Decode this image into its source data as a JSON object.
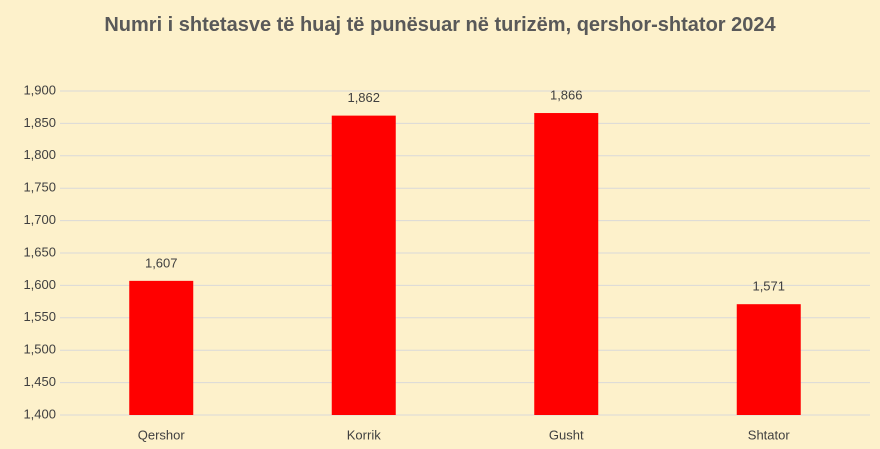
{
  "chart_data": {
    "type": "bar",
    "title": "Numri i shtetasve të huaj të punësuar në turizëm, qershor-shtator 2024",
    "categories": [
      "Qershor",
      "Korrik",
      "Gusht",
      "Shtator"
    ],
    "values": [
      1607,
      1862,
      1866,
      1571
    ],
    "value_labels": [
      "1,607",
      "1,862",
      "1,866",
      "1,571"
    ],
    "color": "#ff0000",
    "ylim": [
      1400,
      1900
    ],
    "yticks": [
      {
        "value": 1400,
        "label": "1,400"
      },
      {
        "value": 1450,
        "label": "1,450"
      },
      {
        "value": 1500,
        "label": "1,500"
      },
      {
        "value": 1550,
        "label": "1,550"
      },
      {
        "value": 1600,
        "label": "1,600"
      },
      {
        "value": 1650,
        "label": "1,650"
      },
      {
        "value": 1700,
        "label": "1,700"
      },
      {
        "value": 1750,
        "label": "1,750"
      },
      {
        "value": 1800,
        "label": "1,800"
      },
      {
        "value": 1850,
        "label": "1,850"
      },
      {
        "value": 1900,
        "label": "1,900"
      }
    ],
    "grid": true
  }
}
